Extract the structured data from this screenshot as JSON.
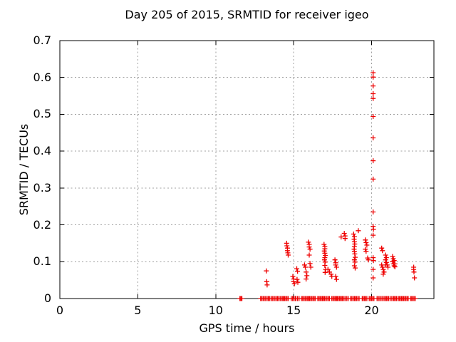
{
  "chart_data": {
    "type": "scatter",
    "title": "Day 205 of 2015, SRMTID for receiver igeo",
    "xlabel": "GPS time / hours",
    "ylabel": "SRMTID / TECUs",
    "xlim": [
      0,
      24
    ],
    "ylim": [
      0,
      0.7
    ],
    "grid": true,
    "legend": "none",
    "marker": "plus",
    "marker_color": "#ee0000",
    "grid_color": "#a0a0a0",
    "border_color": "#000000",
    "xticks": [
      {
        "v": 0,
        "label": "0",
        "grid": false
      },
      {
        "v": 5,
        "label": "5",
        "grid": true
      },
      {
        "v": 10,
        "label": "10",
        "grid": true
      },
      {
        "v": 15,
        "label": "15",
        "grid": true
      },
      {
        "v": 20,
        "label": "20",
        "grid": true
      }
    ],
    "yticks": [
      {
        "v": 0,
        "label": "0",
        "grid": false
      },
      {
        "v": 0.1,
        "label": "0.1",
        "grid": true
      },
      {
        "v": 0.2,
        "label": "0.2",
        "grid": true
      },
      {
        "v": 0.3,
        "label": "0.3",
        "grid": true
      },
      {
        "v": 0.4,
        "label": "0.4",
        "grid": true
      },
      {
        "v": 0.5,
        "label": "0.5",
        "grid": true
      },
      {
        "v": 0.6,
        "label": "0.6",
        "grid": true
      },
      {
        "v": 0.7,
        "label": "0.7",
        "grid": false
      }
    ],
    "series": [
      {
        "name": "SRMTID",
        "points": [
          [
            13.25,
            0.075
          ],
          [
            13.27,
            0.046
          ],
          [
            13.3,
            0.037
          ],
          [
            14.55,
            0.15
          ],
          [
            14.57,
            0.143
          ],
          [
            14.6,
            0.137
          ],
          [
            14.6,
            0.13
          ],
          [
            14.63,
            0.124
          ],
          [
            14.65,
            0.118
          ],
          [
            14.95,
            0.06
          ],
          [
            15.0,
            0.053
          ],
          [
            15.0,
            0.046
          ],
          [
            15.05,
            0.04
          ],
          [
            15.2,
            0.081
          ],
          [
            15.25,
            0.074
          ],
          [
            15.22,
            0.052
          ],
          [
            15.27,
            0.044
          ],
          [
            15.7,
            0.091
          ],
          [
            15.75,
            0.085
          ],
          [
            15.8,
            0.072
          ],
          [
            15.85,
            0.062
          ],
          [
            15.8,
            0.053
          ],
          [
            15.95,
            0.153
          ],
          [
            16.0,
            0.147
          ],
          [
            16.0,
            0.14
          ],
          [
            16.05,
            0.134
          ],
          [
            16.0,
            0.118
          ],
          [
            16.05,
            0.095
          ],
          [
            16.1,
            0.085
          ],
          [
            16.95,
            0.147
          ],
          [
            17.0,
            0.141
          ],
          [
            17.0,
            0.135
          ],
          [
            16.97,
            0.129
          ],
          [
            17.0,
            0.123
          ],
          [
            17.03,
            0.117
          ],
          [
            17.0,
            0.111
          ],
          [
            16.98,
            0.105
          ],
          [
            17.02,
            0.099
          ],
          [
            17.0,
            0.09
          ],
          [
            17.05,
            0.079
          ],
          [
            17.02,
            0.071
          ],
          [
            17.2,
            0.079
          ],
          [
            17.3,
            0.072
          ],
          [
            17.4,
            0.066
          ],
          [
            17.45,
            0.06
          ],
          [
            17.65,
            0.105
          ],
          [
            17.7,
            0.097
          ],
          [
            17.7,
            0.091
          ],
          [
            17.75,
            0.085
          ],
          [
            17.7,
            0.06
          ],
          [
            17.75,
            0.052
          ],
          [
            18.05,
            0.167
          ],
          [
            18.25,
            0.177
          ],
          [
            18.3,
            0.17
          ],
          [
            18.3,
            0.163
          ],
          [
            18.85,
            0.175
          ],
          [
            18.9,
            0.168
          ],
          [
            18.88,
            0.161
          ],
          [
            18.9,
            0.154
          ],
          [
            18.92,
            0.148
          ],
          [
            18.9,
            0.141
          ],
          [
            18.88,
            0.134
          ],
          [
            18.9,
            0.128
          ],
          [
            18.92,
            0.121
          ],
          [
            18.95,
            0.112
          ],
          [
            18.9,
            0.105
          ],
          [
            18.93,
            0.099
          ],
          [
            18.9,
            0.089
          ],
          [
            18.95,
            0.083
          ],
          [
            19.15,
            0.184
          ],
          [
            19.6,
            0.159
          ],
          [
            19.65,
            0.152
          ],
          [
            19.7,
            0.145
          ],
          [
            19.6,
            0.134
          ],
          [
            19.65,
            0.128
          ],
          [
            19.75,
            0.11
          ],
          [
            19.8,
            0.105
          ],
          [
            20.1,
            0.613
          ],
          [
            20.1,
            0.601
          ],
          [
            20.1,
            0.577
          ],
          [
            20.1,
            0.556
          ],
          [
            20.1,
            0.543
          ],
          [
            20.1,
            0.494
          ],
          [
            20.1,
            0.436
          ],
          [
            20.1,
            0.374
          ],
          [
            20.1,
            0.324
          ],
          [
            20.1,
            0.235
          ],
          [
            20.1,
            0.196
          ],
          [
            20.12,
            0.188
          ],
          [
            20.1,
            0.172
          ],
          [
            20.1,
            0.111
          ],
          [
            20.12,
            0.103
          ],
          [
            20.1,
            0.079
          ],
          [
            20.1,
            0.056
          ],
          [
            20.65,
            0.137
          ],
          [
            20.7,
            0.13
          ],
          [
            20.65,
            0.091
          ],
          [
            20.7,
            0.085
          ],
          [
            20.75,
            0.079
          ],
          [
            20.8,
            0.072
          ],
          [
            20.75,
            0.066
          ],
          [
            20.9,
            0.118
          ],
          [
            20.95,
            0.111
          ],
          [
            20.9,
            0.105
          ],
          [
            20.95,
            0.098
          ],
          [
            21.0,
            0.091
          ],
          [
            20.9,
            0.091
          ],
          [
            21.05,
            0.085
          ],
          [
            21.35,
            0.114
          ],
          [
            21.4,
            0.108
          ],
          [
            21.35,
            0.1
          ],
          [
            21.4,
            0.094
          ],
          [
            21.45,
            0.089
          ],
          [
            21.5,
            0.094
          ],
          [
            21.5,
            0.086
          ],
          [
            21.45,
            0.103
          ],
          [
            22.7,
            0.085
          ],
          [
            22.7,
            0.079
          ],
          [
            22.72,
            0.072
          ],
          [
            22.75,
            0.056
          ]
        ]
      }
    ],
    "zero_runs": [
      [
        11.55,
        11.68
      ],
      [
        12.88,
        13.2
      ],
      [
        13.3,
        13.45
      ],
      [
        13.55,
        14.3
      ],
      [
        14.35,
        14.65
      ],
      [
        14.85,
        15.1
      ],
      [
        15.15,
        15.35
      ],
      [
        15.5,
        15.9
      ],
      [
        15.95,
        16.4
      ],
      [
        16.55,
        16.85
      ],
      [
        16.9,
        17.3
      ],
      [
        17.45,
        17.75
      ],
      [
        17.8,
        18.1
      ],
      [
        18.15,
        18.5
      ],
      [
        18.65,
        18.9
      ],
      [
        18.95,
        19.2
      ],
      [
        19.4,
        19.7
      ],
      [
        19.85,
        20.15
      ],
      [
        20.35,
        20.7
      ],
      [
        20.8,
        21.1
      ],
      [
        21.2,
        21.4
      ],
      [
        21.45,
        21.6
      ],
      [
        21.7,
        22.0
      ],
      [
        22.05,
        22.35
      ],
      [
        22.5,
        22.8
      ]
    ]
  }
}
